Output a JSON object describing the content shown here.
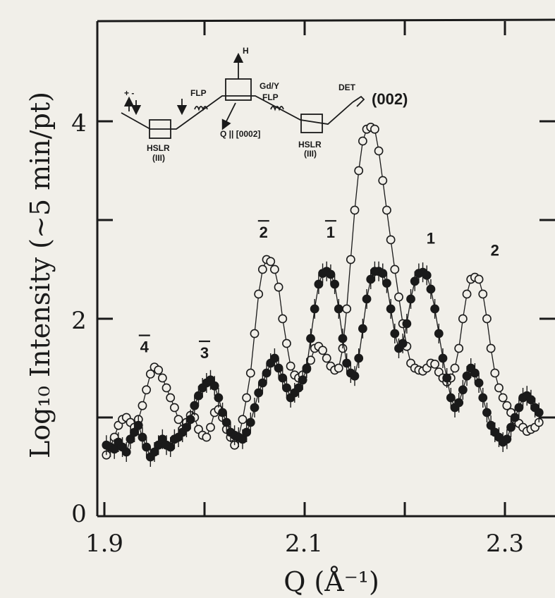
{
  "chart_data": {
    "type": "scatter",
    "title": "",
    "xlabel": "Q (Å⁻¹)",
    "ylabel": "Log₁₀ Intensity (~5 min/pt)",
    "xlim": [
      1.9,
      2.34
    ],
    "ylim": [
      0,
      4.8
    ],
    "grid": false,
    "x_ticks": [
      "1.9",
      "2.1",
      "2.3"
    ],
    "y_ticks": [
      "0",
      "2",
      "4"
    ],
    "peak_labels": [
      {
        "text": "4",
        "overbar": true,
        "x": 1.94,
        "y": 1.66
      },
      {
        "text": "3",
        "overbar": true,
        "x": 2.0,
        "y": 1.6
      },
      {
        "text": "2",
        "overbar": true,
        "x": 2.059,
        "y": 2.82
      },
      {
        "text": "1",
        "overbar": true,
        "x": 2.126,
        "y": 2.82
      },
      {
        "text": "1",
        "overbar": false,
        "x": 2.226,
        "y": 2.76
      },
      {
        "text": "2",
        "overbar": false,
        "x": 2.29,
        "y": 2.64
      },
      {
        "text": "(002)",
        "overbar": false,
        "x": 2.185,
        "y": 4.17
      }
    ],
    "inset_labels": {
      "field": "H",
      "sample": "Gd/Y",
      "flipper1": "FLP",
      "flipper2": "FLP",
      "detector": "DET",
      "polarizer": "HSLR",
      "polarizer_index": "(III)",
      "analyzer": "HSLR",
      "analyzer_index": "(III)",
      "scattering_vector": "Q || [0002]",
      "spin_signs": "+ -"
    },
    "series": [
      {
        "marker": "open-circle",
        "x": [
          1.902,
          1.906,
          1.91,
          1.914,
          1.918,
          1.922,
          1.926,
          1.93,
          1.934,
          1.938,
          1.942,
          1.946,
          1.95,
          1.954,
          1.958,
          1.962,
          1.966,
          1.97,
          1.974,
          1.978,
          1.982,
          1.986,
          1.99,
          1.994,
          1.998,
          2.002,
          2.006,
          2.01,
          2.014,
          2.018,
          2.022,
          2.026,
          2.03,
          2.034,
          2.038,
          2.042,
          2.046,
          2.05,
          2.054,
          2.058,
          2.062,
          2.066,
          2.07,
          2.074,
          2.078,
          2.082,
          2.086,
          2.09,
          2.094,
          2.098,
          2.102,
          2.106,
          2.11,
          2.114,
          2.118,
          2.122,
          2.126,
          2.13,
          2.134,
          2.138,
          2.142,
          2.146,
          2.15,
          2.154,
          2.158,
          2.162,
          2.166,
          2.17,
          2.174,
          2.178,
          2.182,
          2.186,
          2.19,
          2.194,
          2.198,
          2.202,
          2.206,
          2.21,
          2.214,
          2.218,
          2.222,
          2.226,
          2.23,
          2.234,
          2.238,
          2.242,
          2.246,
          2.25,
          2.254,
          2.258,
          2.262,
          2.266,
          2.27,
          2.274,
          2.278,
          2.282,
          2.286,
          2.29,
          2.294,
          2.298,
          2.302,
          2.306,
          2.31,
          2.314,
          2.318,
          2.322,
          2.326,
          2.33,
          2.334
        ],
        "y": [
          0.62,
          0.7,
          0.8,
          0.92,
          0.98,
          1.0,
          0.95,
          0.9,
          0.98,
          1.12,
          1.28,
          1.44,
          1.51,
          1.48,
          1.4,
          1.3,
          1.2,
          1.1,
          0.98,
          0.88,
          0.95,
          1.02,
          1.0,
          0.88,
          0.82,
          0.8,
          0.9,
          1.05,
          1.08,
          1.0,
          0.88,
          0.8,
          0.72,
          0.8,
          0.98,
          1.2,
          1.45,
          1.85,
          2.25,
          2.5,
          2.6,
          2.58,
          2.5,
          2.32,
          2.0,
          1.75,
          1.52,
          1.43,
          1.4,
          1.43,
          1.49,
          1.58,
          1.7,
          1.72,
          1.68,
          1.6,
          1.52,
          1.48,
          1.5,
          1.7,
          2.1,
          2.6,
          3.1,
          3.5,
          3.8,
          3.92,
          3.94,
          3.92,
          3.7,
          3.4,
          3.1,
          2.8,
          2.5,
          2.22,
          1.95,
          1.72,
          1.55,
          1.5,
          1.48,
          1.47,
          1.5,
          1.55,
          1.54,
          1.46,
          1.4,
          1.36,
          1.4,
          1.5,
          1.7,
          2.0,
          2.25,
          2.4,
          2.42,
          2.4,
          2.25,
          2.0,
          1.7,
          1.45,
          1.3,
          1.2,
          1.12,
          1.05,
          0.98,
          0.94,
          0.9,
          0.86,
          0.88,
          0.9,
          0.95
        ]
      },
      {
        "marker": "filled-circle",
        "x": [
          1.902,
          1.906,
          1.91,
          1.914,
          1.918,
          1.922,
          1.926,
          1.93,
          1.934,
          1.938,
          1.942,
          1.946,
          1.95,
          1.954,
          1.958,
          1.962,
          1.966,
          1.97,
          1.974,
          1.978,
          1.982,
          1.986,
          1.99,
          1.994,
          1.998,
          2.002,
          2.006,
          2.01,
          2.014,
          2.018,
          2.022,
          2.026,
          2.03,
          2.034,
          2.038,
          2.042,
          2.046,
          2.05,
          2.054,
          2.058,
          2.062,
          2.066,
          2.07,
          2.074,
          2.078,
          2.082,
          2.086,
          2.09,
          2.094,
          2.098,
          2.102,
          2.106,
          2.11,
          2.114,
          2.118,
          2.122,
          2.126,
          2.13,
          2.134,
          2.138,
          2.142,
          2.146,
          2.15,
          2.154,
          2.158,
          2.162,
          2.166,
          2.17,
          2.174,
          2.178,
          2.182,
          2.186,
          2.19,
          2.194,
          2.198,
          2.202,
          2.206,
          2.21,
          2.214,
          2.218,
          2.222,
          2.226,
          2.23,
          2.234,
          2.238,
          2.242,
          2.246,
          2.25,
          2.254,
          2.258,
          2.262,
          2.266,
          2.27,
          2.274,
          2.278,
          2.282,
          2.286,
          2.29,
          2.294,
          2.298,
          2.302,
          2.306,
          2.31,
          2.314,
          2.318,
          2.322,
          2.326,
          2.33,
          2.334
        ],
        "y": [
          0.72,
          0.7,
          0.68,
          0.75,
          0.7,
          0.65,
          0.78,
          0.85,
          0.92,
          0.8,
          0.7,
          0.6,
          0.65,
          0.72,
          0.78,
          0.72,
          0.7,
          0.78,
          0.8,
          0.85,
          0.9,
          0.98,
          1.12,
          1.22,
          1.3,
          1.35,
          1.38,
          1.32,
          1.2,
          1.05,
          0.95,
          0.85,
          0.82,
          0.8,
          0.78,
          0.85,
          0.95,
          1.1,
          1.25,
          1.35,
          1.45,
          1.55,
          1.6,
          1.5,
          1.4,
          1.3,
          1.2,
          1.25,
          1.3,
          1.38,
          1.5,
          1.8,
          2.1,
          2.35,
          2.46,
          2.48,
          2.45,
          2.35,
          2.1,
          1.8,
          1.55,
          1.45,
          1.42,
          1.6,
          1.9,
          2.2,
          2.4,
          2.48,
          2.48,
          2.46,
          2.36,
          2.1,
          1.85,
          1.7,
          1.75,
          1.95,
          2.2,
          2.38,
          2.46,
          2.47,
          2.44,
          2.3,
          2.1,
          1.85,
          1.6,
          1.4,
          1.2,
          1.1,
          1.15,
          1.28,
          1.42,
          1.5,
          1.45,
          1.35,
          1.2,
          1.05,
          0.92,
          0.85,
          0.8,
          0.75,
          0.78,
          0.9,
          1.0,
          1.1,
          1.2,
          1.22,
          1.18,
          1.1,
          1.05
        ]
      }
    ]
  }
}
